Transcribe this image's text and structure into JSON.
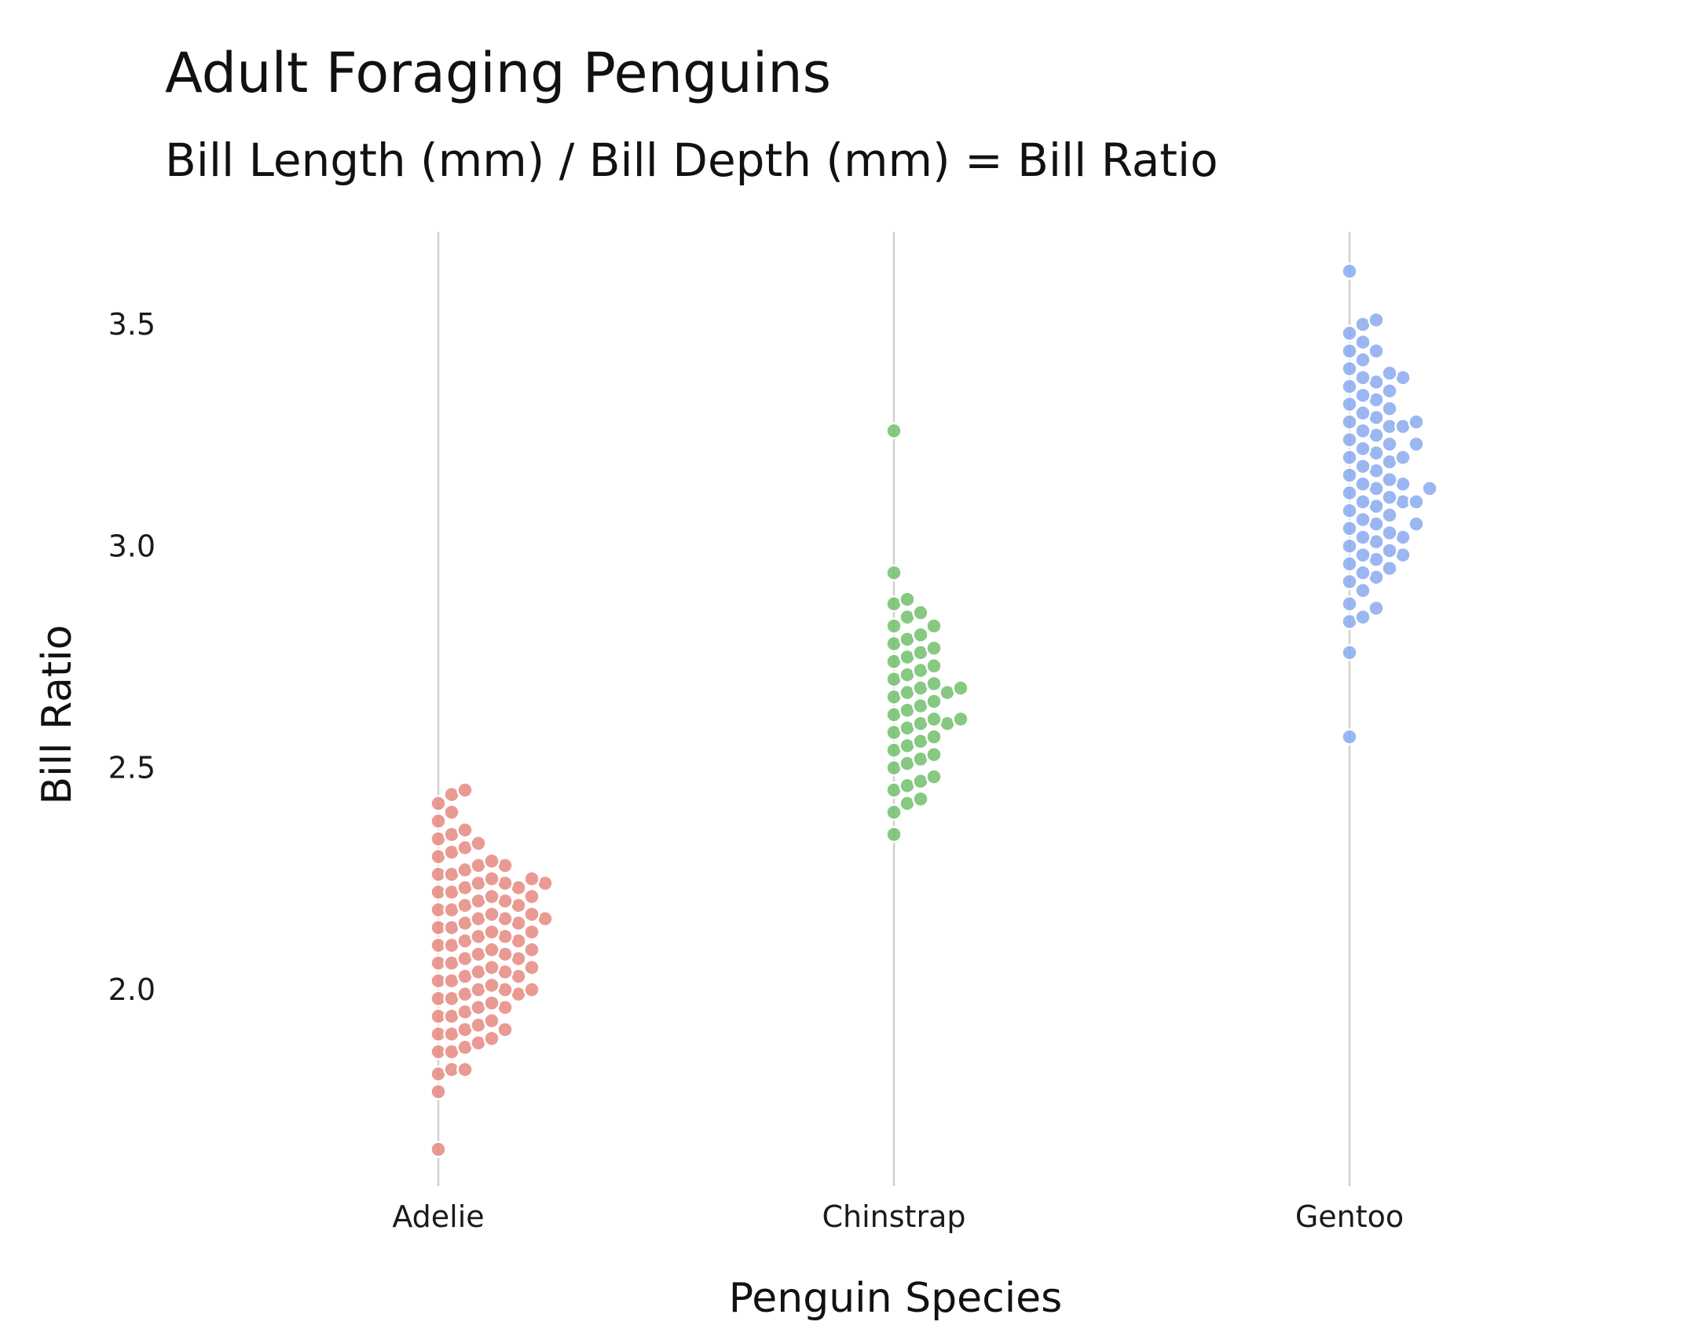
{
  "chart_data": {
    "type": "scatter",
    "subtype": "beeswarm",
    "title": "Adult Foraging Penguins",
    "subtitle": "Bill Length (mm) / Bill Depth (mm) = Bill Ratio",
    "xlabel": "Penguin Species",
    "ylabel": "Bill Ratio",
    "categories": [
      "Adelie",
      "Chinstrap",
      "Gentoo"
    ],
    "ylim": [
      1.62,
      3.72
    ],
    "yticks": [
      2.0,
      2.5,
      3.0,
      3.5
    ],
    "ytick_labels": [
      "2.0",
      "2.5",
      "3.0",
      "3.5"
    ],
    "grid": true,
    "legend": "none",
    "series": [
      {
        "category": "Adelie",
        "color": "#E58A80",
        "values": [
          1.64,
          1.77,
          1.81,
          1.82,
          1.82,
          1.86,
          1.86,
          1.87,
          1.88,
          1.89,
          1.9,
          1.9,
          1.91,
          1.91,
          1.92,
          1.93,
          1.94,
          1.94,
          1.95,
          1.96,
          1.96,
          1.97,
          1.98,
          1.98,
          1.99,
          1.99,
          2.0,
          2.0,
          2.0,
          2.01,
          2.02,
          2.02,
          2.03,
          2.03,
          2.04,
          2.04,
          2.05,
          2.05,
          2.06,
          2.06,
          2.07,
          2.07,
          2.08,
          2.08,
          2.09,
          2.09,
          2.1,
          2.1,
          2.11,
          2.11,
          2.12,
          2.12,
          2.13,
          2.13,
          2.14,
          2.14,
          2.15,
          2.15,
          2.16,
          2.16,
          2.16,
          2.17,
          2.17,
          2.18,
          2.18,
          2.19,
          2.19,
          2.2,
          2.2,
          2.21,
          2.21,
          2.22,
          2.22,
          2.23,
          2.23,
          2.24,
          2.24,
          2.24,
          2.25,
          2.25,
          2.26,
          2.26,
          2.27,
          2.28,
          2.28,
          2.29,
          2.3,
          2.31,
          2.32,
          2.33,
          2.34,
          2.35,
          2.36,
          2.38,
          2.4,
          2.42,
          2.44,
          2.45
        ]
      },
      {
        "category": "Chinstrap",
        "color": "#72C06C",
        "values": [
          2.35,
          2.4,
          2.42,
          2.43,
          2.45,
          2.46,
          2.47,
          2.48,
          2.5,
          2.51,
          2.52,
          2.53,
          2.54,
          2.55,
          2.56,
          2.57,
          2.58,
          2.59,
          2.6,
          2.6,
          2.61,
          2.61,
          2.62,
          2.63,
          2.64,
          2.65,
          2.66,
          2.67,
          2.67,
          2.68,
          2.68,
          2.69,
          2.7,
          2.71,
          2.72,
          2.73,
          2.74,
          2.75,
          2.76,
          2.77,
          2.78,
          2.79,
          2.8,
          2.82,
          2.82,
          2.84,
          2.85,
          2.87,
          2.88,
          2.94,
          3.26
        ]
      },
      {
        "category": "Gentoo",
        "color": "#8AAAF0",
        "values": [
          2.57,
          2.76,
          2.83,
          2.84,
          2.86,
          2.87,
          2.9,
          2.92,
          2.93,
          2.94,
          2.95,
          2.96,
          2.97,
          2.98,
          2.98,
          2.99,
          3.0,
          3.01,
          3.02,
          3.02,
          3.03,
          3.04,
          3.05,
          3.05,
          3.06,
          3.07,
          3.08,
          3.09,
          3.1,
          3.1,
          3.1,
          3.11,
          3.12,
          3.13,
          3.13,
          3.14,
          3.14,
          3.15,
          3.16,
          3.17,
          3.18,
          3.19,
          3.2,
          3.2,
          3.21,
          3.22,
          3.23,
          3.23,
          3.24,
          3.25,
          3.26,
          3.27,
          3.27,
          3.28,
          3.28,
          3.29,
          3.3,
          3.31,
          3.32,
          3.33,
          3.34,
          3.35,
          3.36,
          3.37,
          3.38,
          3.38,
          3.39,
          3.4,
          3.42,
          3.44,
          3.44,
          3.46,
          3.48,
          3.5,
          3.51,
          3.62
        ]
      }
    ]
  }
}
